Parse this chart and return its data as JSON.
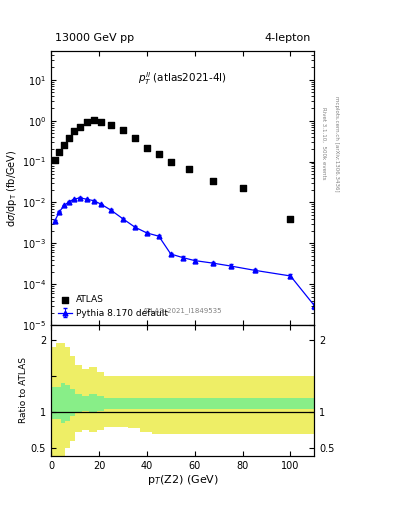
{
  "title_top": "13000 GeV pp",
  "title_right": "4-lepton",
  "annotation": "$p_T^{ll}$ (atlas2021-4l)",
  "watermark": "ATLAS_2021_I1849535",
  "right_label_top": "Rivet 3.1.10,  500k events",
  "right_label_bot": "mcplots.cern.ch [arXiv:1306.3436]",
  "ylabel_main": "dσ/dp_T (fb/GeV)",
  "xlabel": "p$_T$(Z2) (GeV)",
  "ylabel_ratio": "Ratio to ATLAS",
  "ylim_main_log": [
    1e-05,
    50
  ],
  "xlim": [
    0,
    110
  ],
  "atlas_x": [
    1.5,
    3.5,
    5.5,
    7.5,
    9.5,
    12.0,
    15.0,
    18.0,
    21.0,
    25.0,
    30.0,
    35.0,
    40.0,
    45.0,
    50.0,
    57.5,
    67.5,
    80.0,
    100.0
  ],
  "atlas_y": [
    0.11,
    0.17,
    0.25,
    0.38,
    0.55,
    0.72,
    0.92,
    1.05,
    0.95,
    0.8,
    0.6,
    0.38,
    0.22,
    0.15,
    0.1,
    0.065,
    0.033,
    0.022,
    0.004
  ],
  "pythia_x": [
    1.5,
    3.5,
    5.5,
    7.5,
    9.5,
    12.0,
    15.0,
    18.0,
    21.0,
    25.0,
    30.0,
    35.0,
    40.0,
    45.0,
    50.0,
    55.0,
    60.0,
    67.5,
    75.0,
    85.0,
    100.0,
    110.0
  ],
  "pythia_y": [
    0.0035,
    0.006,
    0.0085,
    0.0105,
    0.012,
    0.013,
    0.012,
    0.011,
    0.009,
    0.0065,
    0.004,
    0.0025,
    0.0018,
    0.0015,
    0.00055,
    0.00045,
    0.00038,
    0.00033,
    0.00028,
    0.00022,
    0.00016,
    3e-05
  ],
  "pythia_yerr": [
    0.0002,
    0.0003,
    0.0003,
    0.0004,
    0.0004,
    0.0004,
    0.0004,
    0.0004,
    0.0003,
    0.0003,
    0.0002,
    0.0001,
    0.0001,
    0.0001,
    4e-05,
    4e-05,
    3e-05,
    3e-05,
    3e-05,
    2e-05,
    2e-05,
    5e-06
  ],
  "ratio_x_edges": [
    0,
    2,
    4,
    6,
    8,
    10,
    13,
    16,
    19,
    22,
    27,
    32,
    37,
    42,
    47,
    52,
    57,
    65,
    72,
    80,
    90,
    110
  ],
  "ratio_green_lo": [
    0.9,
    0.9,
    0.85,
    0.88,
    0.95,
    1.0,
    1.02,
    1.0,
    1.02,
    1.05,
    1.05,
    1.05,
    1.05,
    1.05,
    1.05,
    1.05,
    1.05,
    1.05,
    1.05,
    1.05,
    1.05
  ],
  "ratio_green_hi": [
    1.35,
    1.35,
    1.4,
    1.38,
    1.32,
    1.25,
    1.22,
    1.25,
    1.22,
    1.2,
    1.2,
    1.2,
    1.2,
    1.2,
    1.2,
    1.2,
    1.2,
    1.2,
    1.2,
    1.2,
    1.2
  ],
  "ratio_yellow_lo": [
    0.4,
    0.4,
    0.4,
    0.5,
    0.6,
    0.72,
    0.75,
    0.72,
    0.75,
    0.8,
    0.8,
    0.78,
    0.72,
    0.7,
    0.7,
    0.7,
    0.7,
    0.7,
    0.7,
    0.7,
    0.7
  ],
  "ratio_yellow_hi": [
    1.9,
    1.95,
    1.95,
    1.9,
    1.78,
    1.65,
    1.6,
    1.62,
    1.55,
    1.5,
    1.5,
    1.5,
    1.5,
    1.5,
    1.5,
    1.5,
    1.5,
    1.5,
    1.5,
    1.5,
    1.5
  ],
  "atlas_color": "black",
  "pythia_color": "blue",
  "green_color": "#88ee88",
  "yellow_color": "#eeee66"
}
